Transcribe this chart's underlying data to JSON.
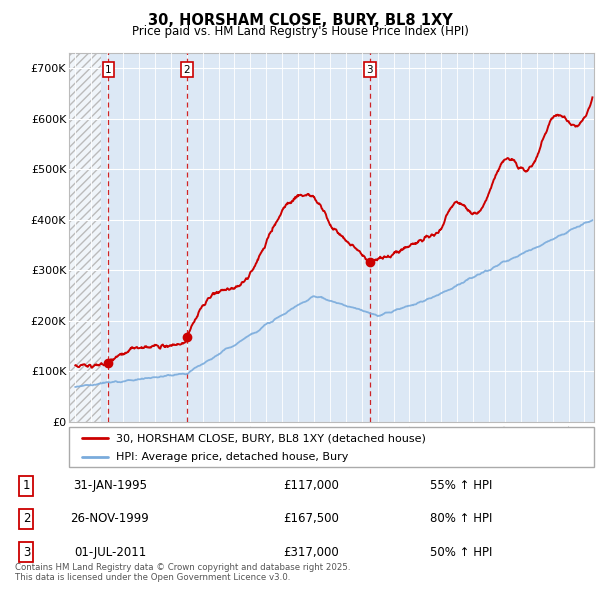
{
  "title": "30, HORSHAM CLOSE, BURY, BL8 1XY",
  "subtitle": "Price paid vs. HM Land Registry's House Price Index (HPI)",
  "ylim": [
    0,
    730000
  ],
  "yticks": [
    0,
    100000,
    200000,
    300000,
    400000,
    500000,
    600000,
    700000
  ],
  "ytick_labels": [
    "£0",
    "£100K",
    "£200K",
    "£300K",
    "£400K",
    "£500K",
    "£600K",
    "£700K"
  ],
  "legend_line1": "30, HORSHAM CLOSE, BURY, BL8 1XY (detached house)",
  "legend_line2": "HPI: Average price, detached house, Bury",
  "property_color": "#cc0000",
  "hpi_color": "#7aabdc",
  "sale_points": [
    {
      "date": 1995.08,
      "price": 117000,
      "label": "1"
    },
    {
      "date": 2000.0,
      "price": 167500,
      "label": "2"
    },
    {
      "date": 2011.5,
      "price": 317000,
      "label": "3"
    }
  ],
  "vline_dates": [
    1995.08,
    2000.0,
    2011.5
  ],
  "footnote": "Contains HM Land Registry data © Crown copyright and database right 2025.\nThis data is licensed under the Open Government Licence v3.0.",
  "table_rows": [
    {
      "num": "1",
      "date": "31-JAN-1995",
      "price": "£117,000",
      "hpi": "55% ↑ HPI"
    },
    {
      "num": "2",
      "date": "26-NOV-1999",
      "price": "£167,500",
      "hpi": "80% ↑ HPI"
    },
    {
      "num": "3",
      "date": "01-JUL-2011",
      "price": "£317,000",
      "hpi": "50% ↑ HPI"
    }
  ],
  "xlim_start": 1992.6,
  "xlim_end": 2025.6,
  "hatch_end": 1994.6,
  "background_color": "#dce8f5"
}
